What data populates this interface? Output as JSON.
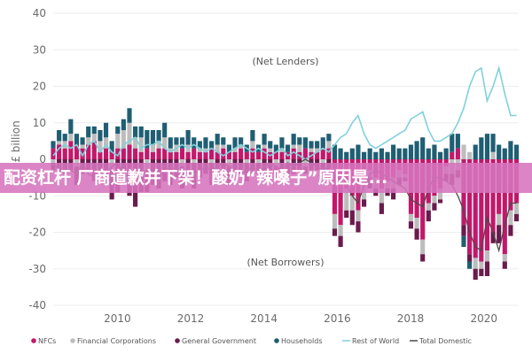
{
  "banner": {
    "text": "配资杠杆 厂商道歉并下架！酸奶“辣嗓子”原因是..."
  },
  "chart_data": {
    "type": "bar",
    "ylabel": "£ billion",
    "ylim": [
      -40,
      40
    ],
    "yticks": [
      40,
      30,
      20,
      10,
      0,
      -10,
      -20,
      -30,
      -40
    ],
    "xticks": [
      "2010",
      "2012",
      "2014",
      "2016",
      "2018",
      "2020"
    ],
    "x_range": [
      2008.25,
      2020.95
    ],
    "annotations": {
      "top": "(Net Lenders)",
      "bottom": "(Net Borrowers)"
    },
    "legend": [
      {
        "name": "NFCs",
        "marker": "dot",
        "color": "#c2186b"
      },
      {
        "name": "Financial Corporations",
        "marker": "dot",
        "color": "#bdbdbd"
      },
      {
        "name": "General Government",
        "marker": "dot",
        "color": "#6a1b4d"
      },
      {
        "name": "Households",
        "marker": "dot",
        "color": "#1f5e73"
      },
      {
        "name": "Rest of World",
        "marker": "line",
        "color": "#7fd1dc"
      },
      {
        "name": "Total Domestic",
        "marker": "line",
        "color": "#4a4a4a"
      }
    ],
    "colors": {
      "nfc": "#c2186b",
      "fin": "#bdbdbd",
      "gov": "#6a1b4d",
      "hh": "#1f5e73",
      "row": "#7fd1dc",
      "dom": "#4a4a4a"
    },
    "series": [
      {
        "key": "nfc",
        "name": "NFCs",
        "values": [
          3,
          4,
          3,
          5,
          4,
          3,
          4,
          5,
          2,
          3,
          2,
          3,
          3,
          4,
          3,
          2,
          3,
          2,
          3,
          3,
          2,
          2,
          3,
          2,
          3,
          2,
          2,
          3,
          2,
          3,
          2,
          2,
          3,
          2,
          3,
          2,
          3,
          2,
          2,
          2,
          2,
          3,
          2,
          3,
          2,
          2,
          3,
          3,
          -15,
          -18,
          -8,
          -10,
          -14,
          -6,
          -3,
          -5,
          -8,
          -6,
          -5,
          -3,
          -4,
          -15,
          -16,
          -22,
          -12,
          -10,
          -8,
          -2,
          2,
          3,
          -18,
          -26,
          -27,
          -28,
          -25,
          -20,
          -15,
          -26,
          -14,
          -12
        ]
      },
      {
        "key": "fin",
        "name": "Financial Corporations",
        "values": [
          -1,
          1,
          2,
          2,
          -2,
          1,
          2,
          2,
          3,
          3,
          -3,
          4,
          5,
          6,
          3,
          4,
          -3,
          2,
          2,
          3,
          1,
          2,
          -2,
          2,
          -1,
          1,
          1,
          -1,
          2,
          1,
          -2,
          1,
          1,
          -1,
          2,
          -1,
          1,
          1,
          -2,
          1,
          -1,
          1,
          2,
          -2,
          1,
          1,
          -1,
          2,
          -4,
          -3,
          -6,
          -4,
          -3,
          -5,
          -2,
          -3,
          -4,
          -2,
          -3,
          -2,
          -1,
          -2,
          -3,
          -4,
          -2,
          -2,
          -3,
          -2,
          -4,
          -3,
          4,
          2,
          -3,
          -2,
          -3,
          2,
          -3,
          -2,
          -4,
          -3
        ]
      },
      {
        "key": "gov",
        "name": "General Government",
        "values": [
          -2,
          -3,
          -4,
          -3,
          -5,
          -4,
          -3,
          -6,
          -4,
          -5,
          -8,
          -9,
          -7,
          -10,
          -13,
          -9,
          -6,
          -7,
          -8,
          -6,
          -7,
          -5,
          -6,
          -4,
          -7,
          -5,
          -4,
          -6,
          -5,
          -4,
          -5,
          -3,
          -4,
          -5,
          -4,
          -3,
          -4,
          -5,
          -3,
          -4,
          -3,
          -4,
          -3,
          -2,
          -3,
          -3,
          -2,
          -4,
          -2,
          -3,
          -2,
          -4,
          -3,
          -2,
          -3,
          -2,
          -3,
          -2,
          -3,
          -2,
          -1,
          -2,
          -3,
          -2,
          -3,
          -2,
          -1,
          -2,
          -3,
          -2,
          -3,
          -2,
          -3,
          -2,
          -4,
          -3,
          -5,
          -2,
          -3,
          -2
        ]
      },
      {
        "key": "hh",
        "name": "Households",
        "values": [
          2,
          3,
          2,
          4,
          3,
          2,
          3,
          2,
          3,
          4,
          3,
          2,
          3,
          4,
          3,
          3,
          5,
          4,
          3,
          4,
          3,
          2,
          3,
          4,
          3,
          2,
          3,
          2,
          3,
          2,
          2,
          3,
          2,
          2,
          3,
          2,
          3,
          2,
          2,
          3,
          2,
          3,
          2,
          3,
          2,
          2,
          3,
          2,
          4,
          3,
          2,
          3,
          4,
          2,
          3,
          2,
          3,
          2,
          4,
          3,
          3,
          4,
          5,
          6,
          3,
          4,
          2,
          3,
          5,
          4,
          -3,
          -2,
          4,
          6,
          7,
          5,
          4,
          3,
          5,
          4
        ]
      },
      {
        "key": "row",
        "name": "Rest of World",
        "values": [
          1,
          3,
          4,
          3,
          4,
          1,
          4,
          5,
          2,
          4,
          2,
          1,
          4,
          5,
          6,
          3,
          4,
          4,
          5,
          3,
          2,
          3,
          4,
          3,
          4,
          3,
          2,
          3,
          2,
          1,
          2,
          3,
          4,
          3,
          2,
          3,
          2,
          1,
          2,
          3,
          1,
          2,
          1,
          0,
          1,
          2,
          3,
          2,
          4,
          6,
          7,
          10,
          12,
          7,
          4,
          3,
          4,
          5,
          6,
          7,
          8,
          11,
          12,
          13,
          8,
          5,
          5,
          6,
          7,
          10,
          14,
          20,
          24,
          25,
          16,
          20,
          25,
          18,
          12,
          12
        ]
      },
      {
        "key": "dom",
        "name": "Total Domestic",
        "values": [
          -1,
          -3,
          -4,
          -3,
          -4,
          -1,
          -4,
          -5,
          -2,
          -4,
          -2,
          -1,
          -4,
          -5,
          -6,
          -3,
          -4,
          -4,
          -5,
          -3,
          -2,
          -3,
          -4,
          -3,
          -4,
          -3,
          -2,
          -3,
          -2,
          -1,
          -2,
          -3,
          -4,
          -3,
          -2,
          -3,
          -2,
          -1,
          -2,
          -3,
          -1,
          -2,
          -1,
          0,
          -1,
          -2,
          -3,
          -2,
          -4,
          -6,
          -7,
          -10,
          -12,
          -7,
          -4,
          -3,
          -4,
          -5,
          -6,
          -7,
          -8,
          -11,
          -12,
          -13,
          -8,
          -5,
          -5,
          -6,
          -7,
          -10,
          -14,
          -20,
          -24,
          -25,
          -16,
          -20,
          -25,
          -18,
          -12,
          -12
        ]
      }
    ],
    "x_start": 2008.25,
    "x_step": 0.16
  }
}
